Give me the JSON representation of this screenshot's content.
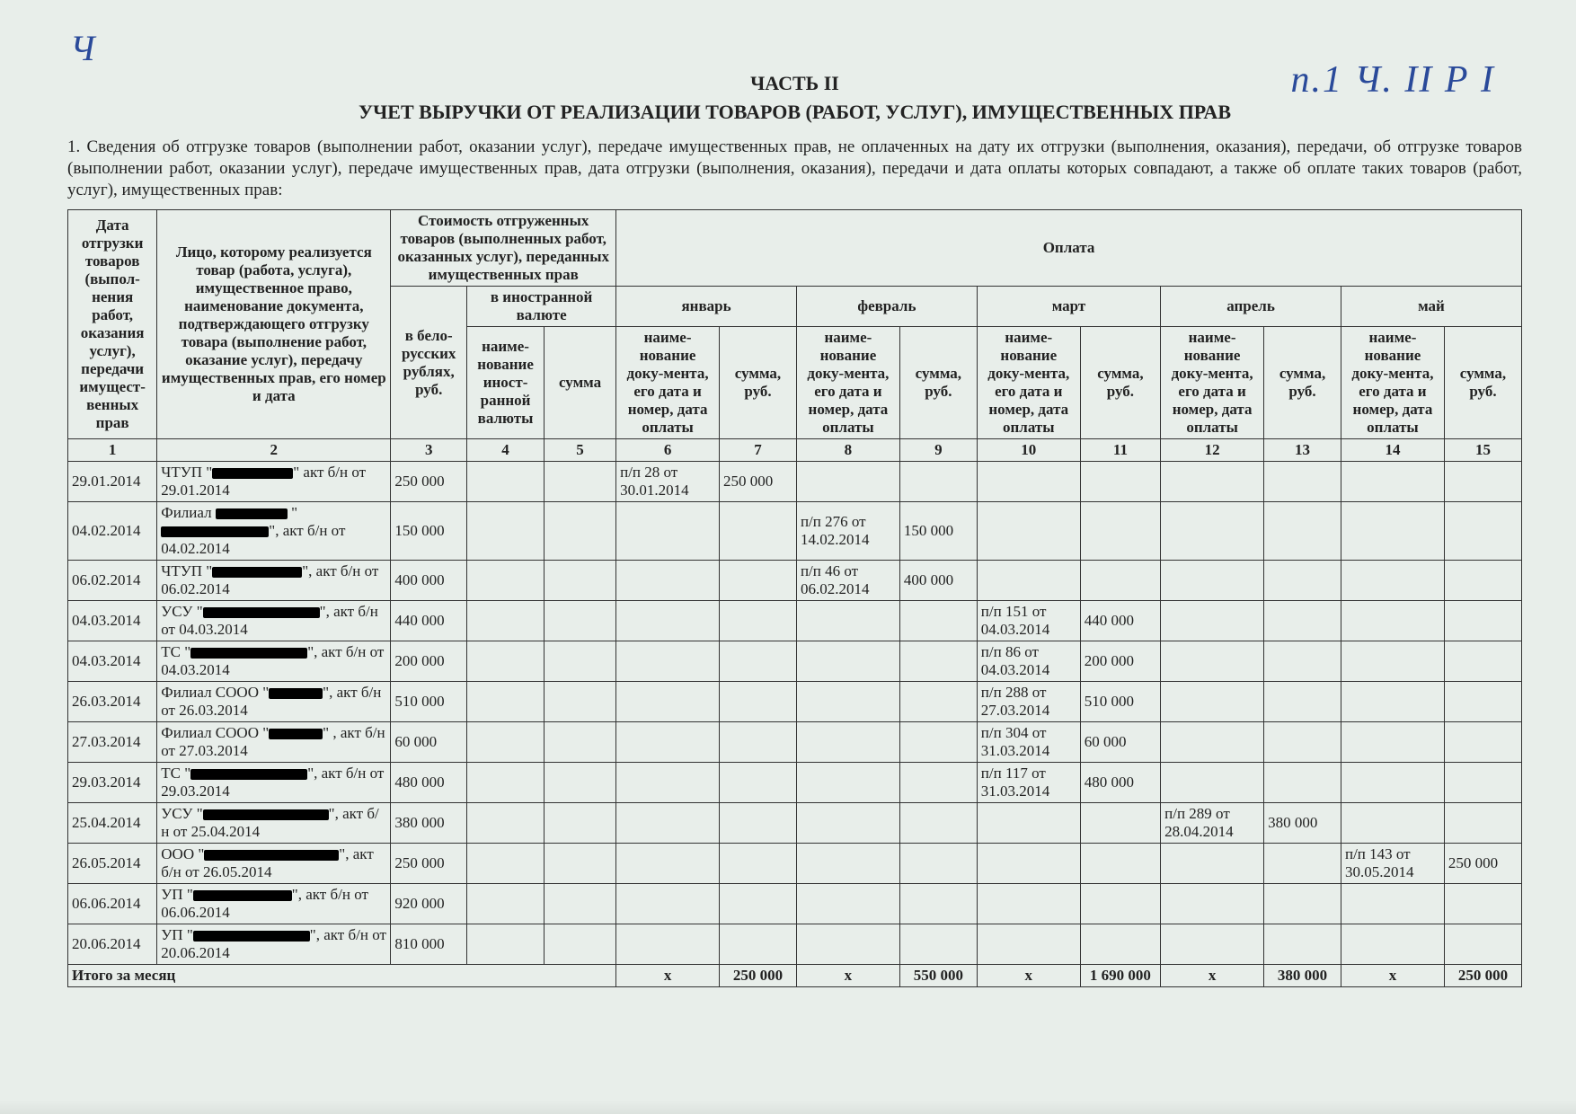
{
  "handwriting": {
    "left": "Ч",
    "right": "п.1  Ч. II Р I"
  },
  "part_label": "ЧАСТЬ II",
  "title": "УЧЕТ ВЫРУЧКИ ОТ РЕАЛИЗАЦИИ ТОВАРОВ (РАБОТ, УСЛУГ), ИМУЩЕСТВЕННЫХ ПРАВ",
  "intro": "1. Сведения об отгрузке товаров (выполнении работ, оказании услуг), передаче имущественных прав, не оплаченных на дату их отгрузки (выполнения, оказания), передачи, об отгрузке товаров (выполнении работ, оказании услуг), передаче имущественных прав, дата отгрузки (выполнения, оказания), передачи и дата оплаты которых совпадают, а также об оплате таких товаров (работ, услуг), имущественных прав:",
  "head": {
    "c1": "Дата отгрузки товаров (выпол-нения работ, оказания услуг), передачи имущест-венных прав",
    "c2": "Лицо, которому реализуется товар (работа, услуга), имущественное право, наименование документа, подтверждающего отгрузку товара (выполнение работ, оказание услуг), передачу имущественных прав, его номер и дата",
    "cost_group": "Стоимость отгруженных товаров (выполненных работ, оказанных услуг), переданных имущественных прав",
    "pay_group": "Оплата",
    "c3": "в бело-русских рублях, руб.",
    "foreign_group": "в иностранной валюте",
    "c4": "наиме-нование иност-ранной валюты",
    "c5": "сумма",
    "months": [
      "январь",
      "февраль",
      "март",
      "апрель",
      "май"
    ],
    "doc_sub": "наиме-нование доку-мента, его дата и номер, дата оплаты",
    "sum_sub": "сумма, руб."
  },
  "colnums": [
    "1",
    "2",
    "3",
    "4",
    "5",
    "6",
    "7",
    "8",
    "9",
    "10",
    "11",
    "12",
    "13",
    "14",
    "15"
  ],
  "rows": [
    {
      "date": "29.01.2014",
      "party_pre": "ЧТУП \"",
      "party_red": 90,
      "party_post": "\" акт б/н от 29.01.2014",
      "bel": "250 000",
      "jan_doc": "п/п 28 от 30.01.2014",
      "jan_sum": "250 000"
    },
    {
      "date": "04.02.2014",
      "party_pre": "Филиал ",
      "party_red": 80,
      "party_mid": " \"",
      "party_red2": 120,
      "party_post": "\", акт б/н от 04.02.2014",
      "bel": "150 000",
      "feb_doc": "п/п 276 от 14.02.2014",
      "feb_sum": "150 000"
    },
    {
      "date": "06.02.2014",
      "party_pre": "ЧТУП \"",
      "party_red": 100,
      "party_post": "\", акт б/н от 06.02.2014",
      "bel": "400 000",
      "feb_doc": "п/п 46 от 06.02.2014",
      "feb_sum": "400 000"
    },
    {
      "date": "04.03.2014",
      "party_pre": "УСУ \"",
      "party_red": 130,
      "party_post": "\", акт б/н от 04.03.2014",
      "bel": "440 000",
      "mar_doc": "п/п 151 от 04.03.2014",
      "mar_sum": "440 000"
    },
    {
      "date": "04.03.2014",
      "party_pre": "ТС \"",
      "party_red": 130,
      "party_post": "\", акт б/н от 04.03.2014",
      "bel": "200 000",
      "mar_doc": "п/п 86 от 04.03.2014",
      "mar_sum": "200 000"
    },
    {
      "date": "26.03.2014",
      "party_pre": "Филиал СООО \"",
      "party_red": 60,
      "party_post": "\", акт б/н от 26.03.2014",
      "bel": "510 000",
      "mar_doc": "п/п 288 от 27.03.2014",
      "mar_sum": "510 000"
    },
    {
      "date": "27.03.2014",
      "party_pre": "Филиал СООО \"",
      "party_red": 60,
      "party_post": "\" , акт б/н от 27.03.2014",
      "bel": "60 000",
      "mar_doc": "п/п 304 от 31.03.2014",
      "mar_sum": "60 000"
    },
    {
      "date": "29.03.2014",
      "party_pre": "ТС \"",
      "party_red": 130,
      "party_post": "\", акт б/н от 29.03.2014",
      "bel": "480 000",
      "mar_doc": "п/п 117 от 31.03.2014",
      "mar_sum": "480 000"
    },
    {
      "date": "25.04.2014",
      "party_pre": "УСУ \"",
      "party_red": 140,
      "party_post": "\", акт б/н от 25.04.2014",
      "bel": "380 000",
      "apr_doc": "п/п 289 от 28.04.2014",
      "apr_sum": "380 000"
    },
    {
      "date": "26.05.2014",
      "party_pre": "ООО \"",
      "party_red": 150,
      "party_post": "\", акт б/н от 26.05.2014",
      "bel": "250 000",
      "may_doc": "п/п 143 от 30.05.2014",
      "may_sum": "250 000"
    },
    {
      "date": "06.06.2014",
      "party_pre": "УП \"",
      "party_red": 110,
      "party_post": "\", акт б/н от 06.06.2014",
      "bel": "920 000"
    },
    {
      "date": "20.06.2014",
      "party_pre": "УП \"",
      "party_red": 130,
      "party_post": "\", акт б/н от 20.06.2014",
      "bel": "810 000"
    }
  ],
  "totals": {
    "label": "Итого за месяц",
    "jan_doc": "x",
    "jan_sum": "250 000",
    "feb_doc": "x",
    "feb_sum": "550 000",
    "mar_doc": "x",
    "mar_sum": "1 690 000",
    "apr_doc": "x",
    "apr_sum": "380 000",
    "may_doc": "x",
    "may_sum": "250 000"
  }
}
